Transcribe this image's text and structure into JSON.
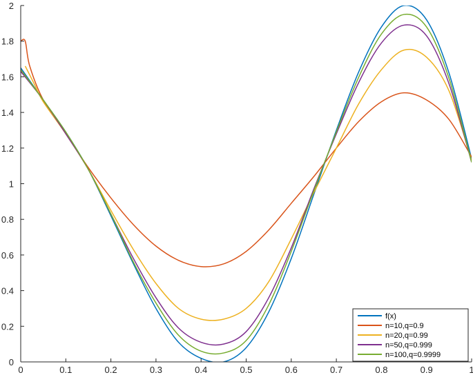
{
  "chart_data": {
    "type": "line",
    "xlim": [
      0,
      1
    ],
    "ylim": [
      0,
      2
    ],
    "x_ticks": [
      "0",
      "0.1",
      "0.2",
      "0.3",
      "0.4",
      "0.5",
      "0.6",
      "0.7",
      "0.8",
      "0.9",
      "1"
    ],
    "y_ticks": [
      "0",
      "0.2",
      "0.4",
      "0.6",
      "0.8",
      "1",
      "1.2",
      "1.4",
      "1.6",
      "1.8",
      "2"
    ],
    "grid": false,
    "legend_position": "bottom-right",
    "series": [
      {
        "name": "f(x)",
        "color": "#0072BD",
        "x": [
          0,
          0.05,
          0.1,
          0.15,
          0.2,
          0.25,
          0.3,
          0.35,
          0.4,
          0.45,
          0.5,
          0.55,
          0.6,
          0.65,
          0.7,
          0.75,
          0.8,
          0.85,
          0.9,
          0.95,
          1
        ],
        "y": [
          1.65,
          1.47,
          1.29,
          1.08,
          0.82,
          0.55,
          0.3,
          0.11,
          0.02,
          0.0,
          0.08,
          0.28,
          0.58,
          0.94,
          1.3,
          1.63,
          1.88,
          2.0,
          1.92,
          1.62,
          1.14
        ]
      },
      {
        "name": "n=10,q=0.9",
        "color": "#D95319",
        "x": [
          0,
          0.01,
          0.02,
          0.05,
          0.1,
          0.15,
          0.2,
          0.25,
          0.3,
          0.35,
          0.4,
          0.45,
          0.5,
          0.55,
          0.6,
          0.65,
          0.7,
          0.75,
          0.8,
          0.85,
          0.9,
          0.95,
          1
        ],
        "y": [
          1.8,
          1.8,
          1.66,
          1.47,
          1.28,
          1.09,
          0.92,
          0.77,
          0.65,
          0.57,
          0.535,
          0.55,
          0.62,
          0.74,
          0.89,
          1.04,
          1.2,
          1.35,
          1.46,
          1.51,
          1.47,
          1.36,
          1.15
        ]
      },
      {
        "name": "n=20,q=0.99",
        "color": "#EDB120",
        "x": [
          0.01,
          0.03,
          0.05,
          0.1,
          0.15,
          0.2,
          0.25,
          0.3,
          0.35,
          0.4,
          0.45,
          0.5,
          0.55,
          0.6,
          0.65,
          0.7,
          0.75,
          0.8,
          0.85,
          0.9,
          0.95,
          1
        ],
        "y": [
          1.66,
          1.56,
          1.46,
          1.28,
          1.08,
          0.85,
          0.63,
          0.44,
          0.3,
          0.24,
          0.24,
          0.3,
          0.45,
          0.69,
          0.95,
          1.2,
          1.45,
          1.64,
          1.75,
          1.71,
          1.52,
          1.13
        ]
      },
      {
        "name": "n=50,q=0.999",
        "color": "#7E2F8E",
        "x": [
          0,
          0.05,
          0.1,
          0.15,
          0.2,
          0.25,
          0.3,
          0.35,
          0.4,
          0.45,
          0.5,
          0.55,
          0.6,
          0.65,
          0.7,
          0.75,
          0.8,
          0.85,
          0.9,
          0.95,
          1
        ],
        "y": [
          1.63,
          1.47,
          1.28,
          1.08,
          0.83,
          0.58,
          0.36,
          0.19,
          0.11,
          0.1,
          0.17,
          0.36,
          0.64,
          0.97,
          1.28,
          1.57,
          1.79,
          1.89,
          1.83,
          1.56,
          1.12
        ]
      },
      {
        "name": "n=100,q=0.9999",
        "color": "#77AC30",
        "x": [
          0,
          0.05,
          0.1,
          0.15,
          0.2,
          0.25,
          0.3,
          0.35,
          0.4,
          0.45,
          0.5,
          0.55,
          0.6,
          0.65,
          0.7,
          0.75,
          0.8,
          0.85,
          0.9,
          0.95,
          1
        ],
        "y": [
          1.64,
          1.47,
          1.29,
          1.08,
          0.83,
          0.56,
          0.33,
          0.15,
          0.06,
          0.05,
          0.12,
          0.32,
          0.62,
          0.96,
          1.29,
          1.6,
          1.84,
          1.95,
          1.88,
          1.59,
          1.12
        ]
      }
    ]
  }
}
